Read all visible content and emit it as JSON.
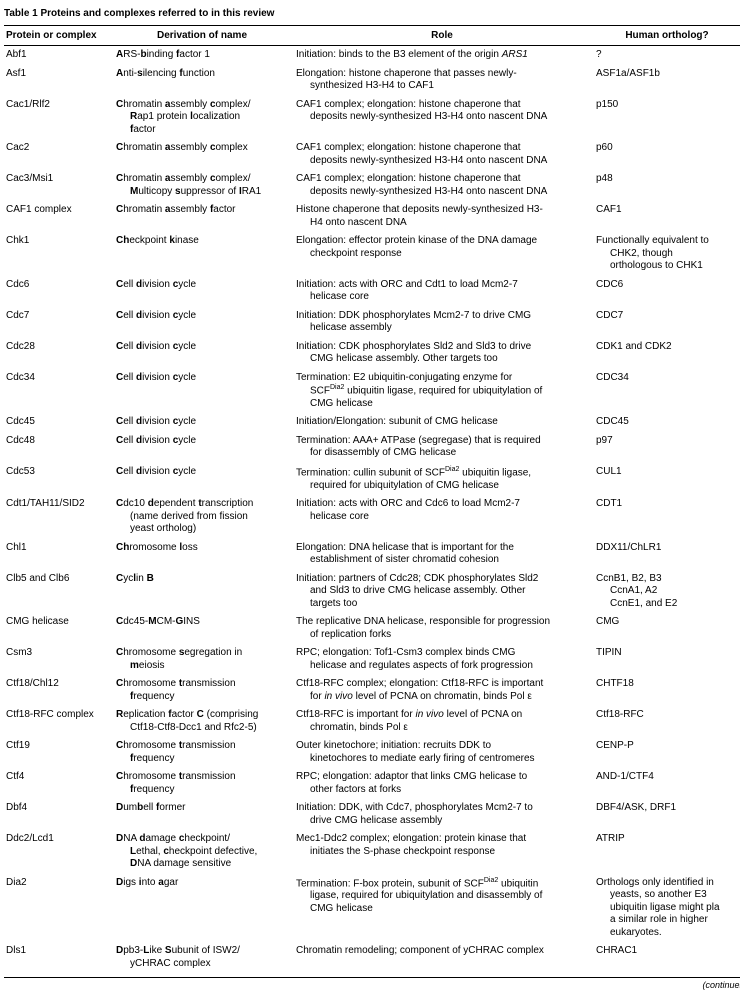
{
  "caption": "Table 1 Proteins and complexes referred to in this review",
  "columns": [
    "Protein or complex",
    "Derivation of name",
    "Role",
    "Human ortholog?"
  ],
  "continues": "(continues",
  "rows": [
    {
      "p": "Abf1",
      "d": "<b>A</b>RS-<b>b</b>inding <b>f</b>actor 1",
      "r": "Initiation: binds to the B3 element of the origin <i>ARS1</i>",
      "h": "?"
    },
    {
      "p": "Asf1",
      "d": "<b>A</b>nti-<b>s</b>ilencing <b>f</b>unction",
      "r": "Elongation: histone chaperone that passes newly-<span class=\"indent\">synthesized H3-H4 to CAF1</span>",
      "h": "ASF1a/ASF1b"
    },
    {
      "p": "Cac1/Rlf2",
      "d": "<b>C</b>hromatin <b>a</b>ssembly <b>c</b>omplex/<span class=\"indent\"><b>R</b>ap1 protein <b>l</b>ocalization</span><span class=\"indent\"><b>f</b>actor</span>",
      "r": "CAF1 complex; elongation: histone chaperone that<span class=\"indent\">deposits newly-synthesized H3-H4 onto nascent DNA</span>",
      "h": "p150"
    },
    {
      "p": "Cac2",
      "d": "<b>C</b>hromatin <b>a</b>ssembly <b>c</b>omplex",
      "r": "CAF1 complex; elongation: histone chaperone that<span class=\"indent\">deposits newly-synthesized H3-H4 onto nascent DNA</span>",
      "h": "p60"
    },
    {
      "p": "Cac3/Msi1",
      "d": "<b>C</b>hromatin <b>a</b>ssembly <b>c</b>omplex/<span class=\"indent\"><b>M</b>ulticopy <b>s</b>uppressor of <b>I</b>RA1</span>",
      "r": "CAF1 complex; elongation: histone chaperone that<span class=\"indent\">deposits newly-synthesized H3-H4 onto nascent DNA</span>",
      "h": "p48"
    },
    {
      "p": "CAF1 complex",
      "d": "<b>C</b>hromatin <b>a</b>ssembly <b>f</b>actor",
      "r": "Histone chaperone that deposits newly-synthesized H3-<span class=\"indent\">H4 onto nascent DNA</span>",
      "h": "CAF1"
    },
    {
      "p": "Chk1",
      "d": "<b>Ch</b>eckpoint <b>k</b>inase",
      "r": "Elongation: effector protein kinase of the DNA damage<span class=\"indent\">checkpoint response</span>",
      "h": "Functionally equivalent to<span class=\"indent\">CHK2, though</span><span class=\"indent\">orthologous to CHK1</span>"
    },
    {
      "p": "Cdc6",
      "d": "<b>C</b>ell <b>d</b>ivision <b>c</b>ycle",
      "r": "Initiation: acts with ORC and Cdt1 to load Mcm2-7<span class=\"indent\">helicase core</span>",
      "h": "CDC6"
    },
    {
      "p": "Cdc7",
      "d": "<b>C</b>ell <b>d</b>ivision <b>c</b>ycle",
      "r": "Initiation: DDK phosphorylates Mcm2-7 to drive CMG<span class=\"indent\">helicase assembly</span>",
      "h": "CDC7"
    },
    {
      "p": "Cdc28",
      "d": "<b>C</b>ell <b>d</b>ivision <b>c</b>ycle",
      "r": "Initiation: CDK phosphorylates Sld2 and Sld3 to drive<span class=\"indent\">CMG helicase assembly. Other targets too</span>",
      "h": "CDK1 and CDK2"
    },
    {
      "p": "Cdc34",
      "d": "<b>C</b>ell <b>d</b>ivision <b>c</b>ycle",
      "r": "Termination: E2 ubiquitin-conjugating enzyme for<span class=\"indent\">SCF<span class=\"sup\">Dia2</span> ubiquitin ligase, required for ubiquitylation of</span><span class=\"indent\">CMG helicase</span>",
      "h": "CDC34"
    },
    {
      "p": "Cdc45",
      "d": "<b>C</b>ell <b>d</b>ivision <b>c</b>ycle",
      "r": "Initiation/Elongation: subunit of CMG helicase",
      "h": "CDC45"
    },
    {
      "p": "Cdc48",
      "d": "<b>C</b>ell <b>d</b>ivision <b>c</b>ycle",
      "r": "Termination: AAA+ ATPase (segregase) that is required<span class=\"indent\">for disassembly of CMG helicase</span>",
      "h": "p97"
    },
    {
      "p": "Cdc53",
      "d": "<b>C</b>ell <b>d</b>ivision <b>c</b>ycle",
      "r": "Termination: cullin subunit of SCF<span class=\"sup\">Dia2</span> ubiquitin ligase,<span class=\"indent\">required for ubiquitylation of CMG helicase</span>",
      "h": "CUL1"
    },
    {
      "p": "Cdt1/TAH11/SID2",
      "d": "<b>C</b>dc10 <b>d</b>ependent <b>t</b>ranscription<span class=\"indent\">(name derived from fission</span><span class=\"indent\">yeast ortholog)</span>",
      "r": "Initiation: acts with ORC and Cdc6 to load Mcm2-7<span class=\"indent\">helicase core</span>",
      "h": "CDT1"
    },
    {
      "p": "Chl1",
      "d": "<b>Ch</b>romosome <b>l</b>oss",
      "r": "Elongation: DNA helicase that is important for the<span class=\"indent\">establishment of sister chromatid cohesion</span>",
      "h": "DDX11/ChLR1"
    },
    {
      "p": "Clb5 and Clb6",
      "d": "<b>C</b>yc<b>l</b>in <b>B</b>",
      "r": "Initiation: partners of Cdc28; CDK phosphorylates Sld2<span class=\"indent\">and Sld3 to drive CMG helicase assembly. Other</span><span class=\"indent\">targets too</span>",
      "h": "CcnB1, B2, B3<span class=\"indent\">CcnA1, A2</span><span class=\"indent\">CcnE1, and E2</span>"
    },
    {
      "p": "CMG helicase",
      "d": "<b>C</b>dc45-<b>M</b>CM-<b>G</b>INS",
      "r": "The replicative DNA helicase, responsible for progression<span class=\"indent\">of replication forks</span>",
      "h": "CMG"
    },
    {
      "p": "Csm3",
      "d": "<b>C</b>hromosome <b>s</b>egregation in<span class=\"indent\"><b>m</b>eiosis</span>",
      "r": "RPC; elongation: Tof1-Csm3 complex binds CMG<span class=\"indent\">helicase and regulates aspects of fork progression</span>",
      "h": "TIPIN"
    },
    {
      "p": "Ctf18/Chl12",
      "d": "<b>C</b>hromosome <b>t</b>ransmission<span class=\"indent\"><b>f</b>requency</span>",
      "r": "Ctf18-RFC complex; elongation: Ctf18-RFC is important<span class=\"indent\">for <i>in vivo</i> level of PCNA on chromatin, binds Pol ε</span>",
      "h": "CHTF18"
    },
    {
      "p": "Ctf18-RFC complex",
      "d": "<b>R</b>eplication <b>f</b>actor <b>C</b> (comprising<span class=\"indent\">Ctf18-Ctf8-Dcc1 and Rfc2-5)</span>",
      "r": "Ctf18-RFC is important for <i>in vivo</i> level of PCNA on<span class=\"indent\">chromatin, binds Pol ε</span>",
      "h": "Ctf18-RFC"
    },
    {
      "p": "Ctf19",
      "d": "<b>C</b>hromosome <b>t</b>ransmission<span class=\"indent\"><b>f</b>requency</span>",
      "r": "Outer kinetochore; initiation: recruits DDK to<span class=\"indent\">kinetochores to mediate early firing of centromeres</span>",
      "h": "CENP-P"
    },
    {
      "p": "Ctf4",
      "d": "<b>C</b>hromosome <b>t</b>ransmission<span class=\"indent\"><b>f</b>requency</span>",
      "r": "RPC; elongation: adaptor that links CMG helicase to<span class=\"indent\">other factors at forks</span>",
      "h": "AND-1/CTF4"
    },
    {
      "p": "Dbf4",
      "d": "<b>D</b>um<b>b</b>ell <b>f</b>ormer",
      "r": "Initiation: DDK, with Cdc7, phosphorylates Mcm2-7 to<span class=\"indent\">drive CMG helicase assembly</span>",
      "h": "DBF4/ASK, DRF1"
    },
    {
      "p": "Ddc2/Lcd1",
      "d": "<b>D</b>NA <b>d</b>amage <b>c</b>heckpoint/<span class=\"indent\"><b>L</b>ethal, <b>c</b>heckpoint defective,</span><span class=\"indent\"><b>D</b>NA damage sensitive</span>",
      "r": "Mec1-Ddc2 complex; elongation: protein kinase that<span class=\"indent\">initiates the S-phase checkpoint response</span>",
      "h": "ATRIP"
    },
    {
      "p": "Dia2",
      "d": "<b>D</b>igs <b>i</b>nto <b>a</b>gar",
      "r": "Termination: F-box protein, subunit of SCF<span class=\"sup\">Dia2</span> ubiquitin<span class=\"indent\">ligase, required for ubiquitylation and disassembly of</span><span class=\"indent\">CMG helicase</span>",
      "h": "Orthologs only identified in<span class=\"indent\">yeasts, so another E3</span><span class=\"indent\">ubiquitin ligase might pla</span><span class=\"indent\">a similar role in higher</span><span class=\"indent\">eukaryotes.</span>"
    },
    {
      "p": "Dls1",
      "d": "<b>D</b>pb3-<b>L</b>ike <b>S</b>ubunit of ISW2/<span class=\"indent\">yCHRAC complex</span>",
      "r": "Chromatin remodeling; component of yCHRAC complex",
      "h": "CHRAC1"
    }
  ]
}
